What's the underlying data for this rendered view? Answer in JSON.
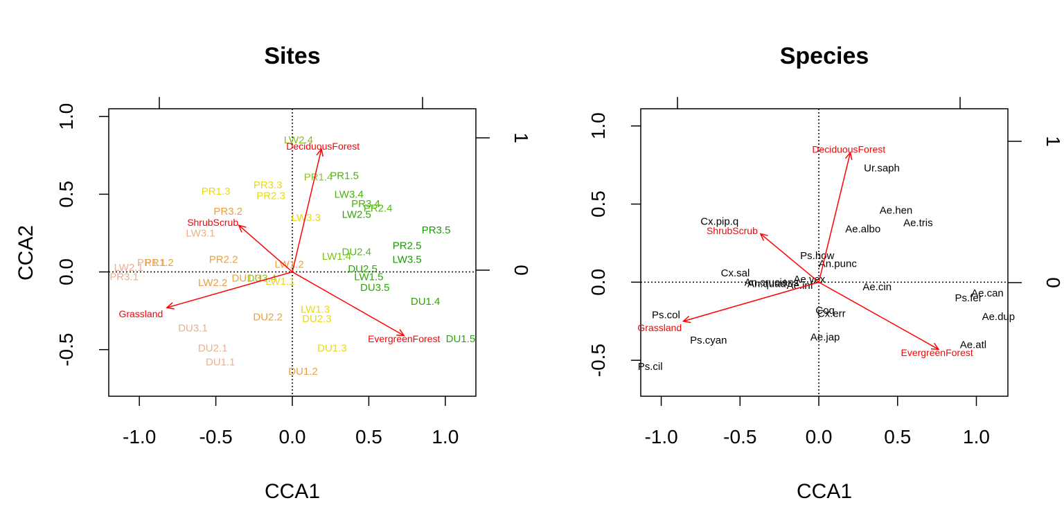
{
  "chart_data": [
    {
      "type": "scatter",
      "title": "Sites",
      "xlabel": "CCA1",
      "ylabel": "CCA2",
      "xlim": [
        -1.2,
        1.2
      ],
      "ylim": [
        -0.8,
        1.05
      ],
      "xticks": [
        "-1.0",
        "-0.5",
        "0.0",
        "0.5",
        "1.0"
      ],
      "yticks": [
        "-0.5",
        "0.0",
        "0.5",
        "1.0"
      ],
      "right_ticks": [
        "0",
        "1"
      ],
      "reference_lines": {
        "x": 0,
        "y": 0,
        "style": "dotted"
      },
      "points": [
        {
          "label": "LW2.4",
          "x": 0.04,
          "y": 0.85,
          "color": "#7cc416"
        },
        {
          "label": "PR1.5",
          "x": 0.34,
          "y": 0.62,
          "color": "#4cb010"
        },
        {
          "label": "PR1.4",
          "x": 0.17,
          "y": 0.61,
          "color": "#8cc41e"
        },
        {
          "label": "PR3.3",
          "x": -0.16,
          "y": 0.56,
          "color": "#e8d81c"
        },
        {
          "label": "PR1.3",
          "x": -0.5,
          "y": 0.52,
          "color": "#e8d81c"
        },
        {
          "label": "PR2.3",
          "x": -0.14,
          "y": 0.49,
          "color": "#e8d81c"
        },
        {
          "label": "LW3.4",
          "x": 0.37,
          "y": 0.5,
          "color": "#4cb010"
        },
        {
          "label": "PR3.4",
          "x": 0.48,
          "y": 0.44,
          "color": "#4cb010"
        },
        {
          "label": "PR2.4",
          "x": 0.56,
          "y": 0.41,
          "color": "#58b814"
        },
        {
          "label": "LW2.5",
          "x": 0.42,
          "y": 0.37,
          "color": "#2ea40a"
        },
        {
          "label": "PR3.2",
          "x": -0.42,
          "y": 0.39,
          "color": "#e8a040"
        },
        {
          "label": "LW3.3",
          "x": 0.09,
          "y": 0.35,
          "color": "#e8d81c"
        },
        {
          "label": "LW3.1",
          "x": -0.6,
          "y": 0.25,
          "color": "#e8b090"
        },
        {
          "label": "PR3.5",
          "x": 0.94,
          "y": 0.27,
          "color": "#1a9a06"
        },
        {
          "label": "PR2.5",
          "x": 0.75,
          "y": 0.17,
          "color": "#1a9a06"
        },
        {
          "label": "DU2.4",
          "x": 0.42,
          "y": 0.13,
          "color": "#58b814"
        },
        {
          "label": "LW1.4",
          "x": 0.29,
          "y": 0.1,
          "color": "#7cc416"
        },
        {
          "label": "LW3.5",
          "x": 0.75,
          "y": 0.08,
          "color": "#1a9a06"
        },
        {
          "label": "PR2.2",
          "x": -0.45,
          "y": 0.08,
          "color": "#e8a040"
        },
        {
          "label": "LW1.2",
          "x": -0.02,
          "y": 0.05,
          "color": "#e8a040"
        },
        {
          "label": "DU2.5",
          "x": 0.46,
          "y": 0.02,
          "color": "#2ea40a"
        },
        {
          "label": "PR1.1",
          "x": -0.92,
          "y": 0.06,
          "color": "#e8b090"
        },
        {
          "label": "PR1.2",
          "x": -0.87,
          "y": 0.06,
          "color": "#e8a040"
        },
        {
          "label": "LW2.1",
          "x": -1.07,
          "y": 0.03,
          "color": "#e8b090"
        },
        {
          "label": "LW1.5",
          "x": 0.5,
          "y": -0.03,
          "color": "#2ea40a"
        },
        {
          "label": "DU1.3",
          "x": -0.3,
          "y": -0.04,
          "color": "#e8a040"
        },
        {
          "label": "DU3.4",
          "x": -0.2,
          "y": -0.04,
          "color": "#8cc41e"
        },
        {
          "label": "LW1.1",
          "x": -0.08,
          "y": -0.06,
          "color": "#e8d81c"
        },
        {
          "label": "PR3.1",
          "x": -1.1,
          "y": -0.03,
          "color": "#e8b090"
        },
        {
          "label": "LW2.2",
          "x": -0.52,
          "y": -0.07,
          "color": "#e8a040"
        },
        {
          "label": "DU3.5",
          "x": 0.54,
          "y": -0.1,
          "color": "#2ea40a"
        },
        {
          "label": "DU1.4",
          "x": 0.87,
          "y": -0.19,
          "color": "#2ea40a"
        },
        {
          "label": "LW1.3",
          "x": 0.15,
          "y": -0.24,
          "color": "#e8d81c"
        },
        {
          "label": "DU2.2",
          "x": -0.16,
          "y": -0.29,
          "color": "#e8a040"
        },
        {
          "label": "DU2.3",
          "x": 0.16,
          "y": -0.3,
          "color": "#e8d81c"
        },
        {
          "label": "DU3.1",
          "x": -0.65,
          "y": -0.36,
          "color": "#e8b090"
        },
        {
          "label": "DU1.5",
          "x": 1.1,
          "y": -0.43,
          "color": "#2ea40a"
        },
        {
          "label": "DU2.1",
          "x": -0.52,
          "y": -0.49,
          "color": "#e8b090"
        },
        {
          "label": "DU1.3",
          "x": 0.26,
          "y": -0.49,
          "color": "#e8d81c"
        },
        {
          "label": "DU1.1",
          "x": -0.47,
          "y": -0.58,
          "color": "#e8b090"
        },
        {
          "label": "DU1.2",
          "x": 0.07,
          "y": -0.64,
          "color": "#e8a040"
        }
      ],
      "vectors": [
        {
          "label": "DeciduousForest",
          "x": 0.19,
          "y": 0.79,
          "lx": 0.2,
          "ly": 0.81
        },
        {
          "label": "ShrubScrub",
          "x": -0.35,
          "y": 0.3,
          "lx": -0.52,
          "ly": 0.32
        },
        {
          "label": "Grassland",
          "x": -0.82,
          "y": -0.23,
          "lx": -0.99,
          "ly": -0.27
        },
        {
          "label": "EvergreenForest",
          "x": 0.73,
          "y": -0.41,
          "lx": 0.73,
          "ly": -0.43
        }
      ]
    },
    {
      "type": "scatter",
      "title": "Species",
      "xlabel": "CCA1",
      "ylabel": "",
      "xlim": [
        -1.13,
        1.2
      ],
      "ylim": [
        -0.73,
        1.11
      ],
      "xticks": [
        "-1.0",
        "-0.5",
        "0.0",
        "0.5",
        "1.0"
      ],
      "yticks": [
        "-0.5",
        "0.0",
        "0.5",
        "1.0"
      ],
      "right_ticks": [
        "0",
        "1"
      ],
      "reference_lines": {
        "x": 0,
        "y": 0,
        "style": "dotted"
      },
      "points": [
        {
          "label": "Ur.saph",
          "x": 0.4,
          "y": 0.73
        },
        {
          "label": "Ae.hen",
          "x": 0.49,
          "y": 0.46
        },
        {
          "label": "Ae.tris",
          "x": 0.63,
          "y": 0.38
        },
        {
          "label": "Cx.pip.q",
          "x": -0.63,
          "y": 0.39
        },
        {
          "label": "Ae.albo",
          "x": 0.28,
          "y": 0.34
        },
        {
          "label": "Ps.how",
          "x": -0.01,
          "y": 0.17
        },
        {
          "label": "An.punc",
          "x": 0.12,
          "y": 0.12
        },
        {
          "label": "Cx.sal",
          "x": -0.53,
          "y": 0.06
        },
        {
          "label": "Ae.vex",
          "x": -0.06,
          "y": 0.02
        },
        {
          "label": "An.crucians",
          "x": -0.3,
          "y": 0.0
        },
        {
          "label": "An.quad",
          "x": -0.33,
          "y": -0.01
        },
        {
          "label": "Ae.inf",
          "x": -0.12,
          "y": -0.02
        },
        {
          "label": "Ae.cin",
          "x": 0.37,
          "y": -0.03
        },
        {
          "label": "Ae.can",
          "x": 1.07,
          "y": -0.07
        },
        {
          "label": "Ps.fer",
          "x": 0.95,
          "y": -0.1
        },
        {
          "label": "Coq",
          "x": 0.04,
          "y": -0.18
        },
        {
          "label": "Cx.err",
          "x": 0.08,
          "y": -0.2
        },
        {
          "label": "Ae.dup",
          "x": 1.14,
          "y": -0.22
        },
        {
          "label": "Ps.col",
          "x": -0.97,
          "y": -0.21
        },
        {
          "label": "Ae.jap",
          "x": 0.04,
          "y": -0.35
        },
        {
          "label": "Ps.cyan",
          "x": -0.7,
          "y": -0.37
        },
        {
          "label": "Ae.atl",
          "x": 0.98,
          "y": -0.4
        },
        {
          "label": "Ps.cil",
          "x": -1.07,
          "y": -0.54
        }
      ],
      "vectors": [
        {
          "label": "DeciduousForest",
          "x": 0.2,
          "y": 0.83,
          "lx": 0.19,
          "ly": 0.85
        },
        {
          "label": "ShrubScrub",
          "x": -0.37,
          "y": 0.31,
          "lx": -0.55,
          "ly": 0.33
        },
        {
          "label": "Grassland",
          "x": -0.86,
          "y": -0.25,
          "lx": -1.01,
          "ly": -0.29
        },
        {
          "label": "EvergreenForest",
          "x": 0.76,
          "y": -0.43,
          "lx": 0.75,
          "ly": -0.45
        }
      ]
    }
  ]
}
